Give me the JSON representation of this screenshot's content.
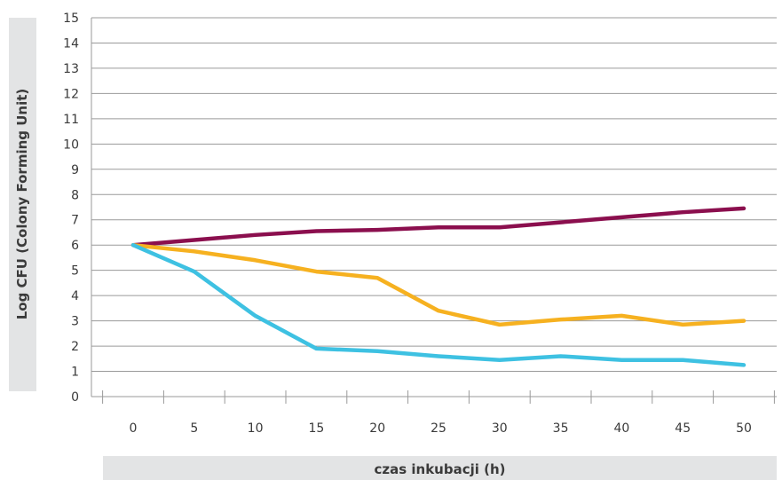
{
  "chart_data": {
    "type": "line",
    "xlabel": "czas inkubacji (h)",
    "ylabel": "Log CFU (Colony Forming Unit)",
    "x": [
      0,
      5,
      10,
      15,
      20,
      25,
      30,
      35,
      40,
      45,
      50
    ],
    "ylim": [
      0,
      15
    ],
    "yticks": [
      0,
      1,
      2,
      3,
      4,
      5,
      6,
      7,
      8,
      9,
      10,
      11,
      12,
      13,
      14,
      15
    ],
    "grid": true,
    "series": [
      {
        "color": "#8b0f4e",
        "values": [
          6.0,
          6.2,
          6.4,
          6.55,
          6.6,
          6.7,
          6.7,
          6.9,
          7.1,
          7.3,
          7.45
        ]
      },
      {
        "color": "#f6b120",
        "values": [
          6.0,
          5.75,
          5.4,
          4.95,
          4.7,
          3.4,
          2.85,
          3.05,
          3.2,
          2.85,
          3.0
        ]
      },
      {
        "color": "#3ec1e2",
        "values": [
          6.0,
          4.95,
          3.2,
          1.9,
          1.8,
          1.6,
          1.45,
          1.6,
          1.45,
          1.45,
          1.25
        ]
      }
    ]
  }
}
